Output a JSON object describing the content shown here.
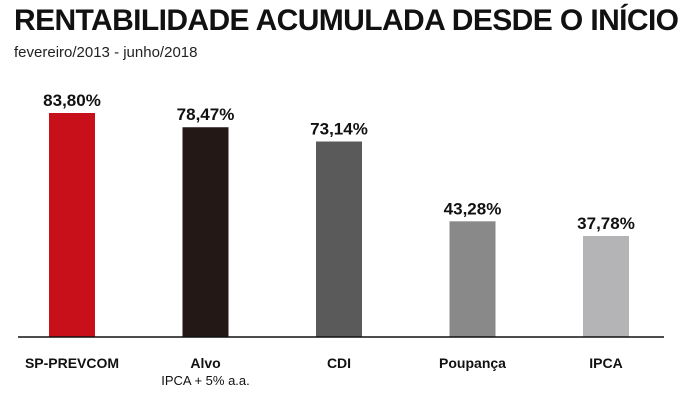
{
  "title": "RENTABILIDADE ACUMULADA DESDE O INÍCIO",
  "subtitle": "fevereiro/2013 - junho/2018",
  "chart_data": {
    "type": "bar",
    "title": "RENTABILIDADE ACUMULADA DESDE O INÍCIO",
    "subtitle": "fevereiro/2013 - junho/2018",
    "categories": [
      "SP-PREVCOM",
      "Alvo",
      "CDI",
      "Poupança",
      "IPCA"
    ],
    "category_sublabels": [
      "",
      "IPCA + 5% a.a.",
      "",
      "",
      ""
    ],
    "values": [
      83.8,
      78.47,
      73.14,
      43.28,
      37.78
    ],
    "value_labels": [
      "83,80%",
      "78,47%",
      "73,14%",
      "43,28%",
      "37,78%"
    ],
    "bar_colors": [
      "#c8101a",
      "#231816",
      "#5b5a5b",
      "#8a898a",
      "#b4b3b5"
    ],
    "unit": "%",
    "ylim": [
      0,
      83.8
    ],
    "grid": false,
    "legend": "none"
  }
}
